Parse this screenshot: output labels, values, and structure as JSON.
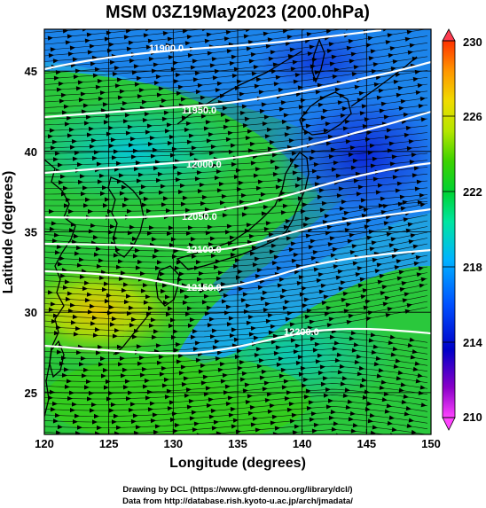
{
  "title": "MSM 03Z19May2023 (200.0hPa)",
  "xlabel": "Longitude (degrees)",
  "ylabel": "Latitude  (degrees)",
  "x_ticks": [
    120,
    125,
    130,
    135,
    140,
    145,
    150
  ],
  "y_ticks": [
    25,
    30,
    35,
    40,
    45
  ],
  "x_tick_labels": [
    "120",
    "125",
    "130",
    "135",
    "140",
    "145",
    "150"
  ],
  "y_tick_labels": [
    "25",
    "30",
    "35",
    "40",
    "45"
  ],
  "colorbar": {
    "ticks": [
      210,
      214,
      218,
      222,
      226,
      230
    ],
    "tick_labels": [
      "210",
      "214",
      "218",
      "222",
      "226",
      "230"
    ],
    "colors": [
      "#ff44ff",
      "#8a00c8",
      "#0000c8",
      "#0050ff",
      "#00b4ff",
      "#00e6a0",
      "#00d232",
      "#3cd200",
      "#b4e600",
      "#f0dc00",
      "#ff9600",
      "#ff3200"
    ]
  },
  "contours": [
    {
      "label": "11900.0"
    },
    {
      "label": "11950.0"
    },
    {
      "label": "12000.0"
    },
    {
      "label": "12050.0"
    },
    {
      "label": "12100.0"
    },
    {
      "label": "12150.0"
    },
    {
      "label": "12200.0"
    }
  ],
  "credits": {
    "line1": "Drawing by DCL (https://www.gfd-dennou.org/library/dcl/)",
    "line2": "Data from http://database.rish.kyoto-u.ac.jp/arch/jmadata/"
  }
}
